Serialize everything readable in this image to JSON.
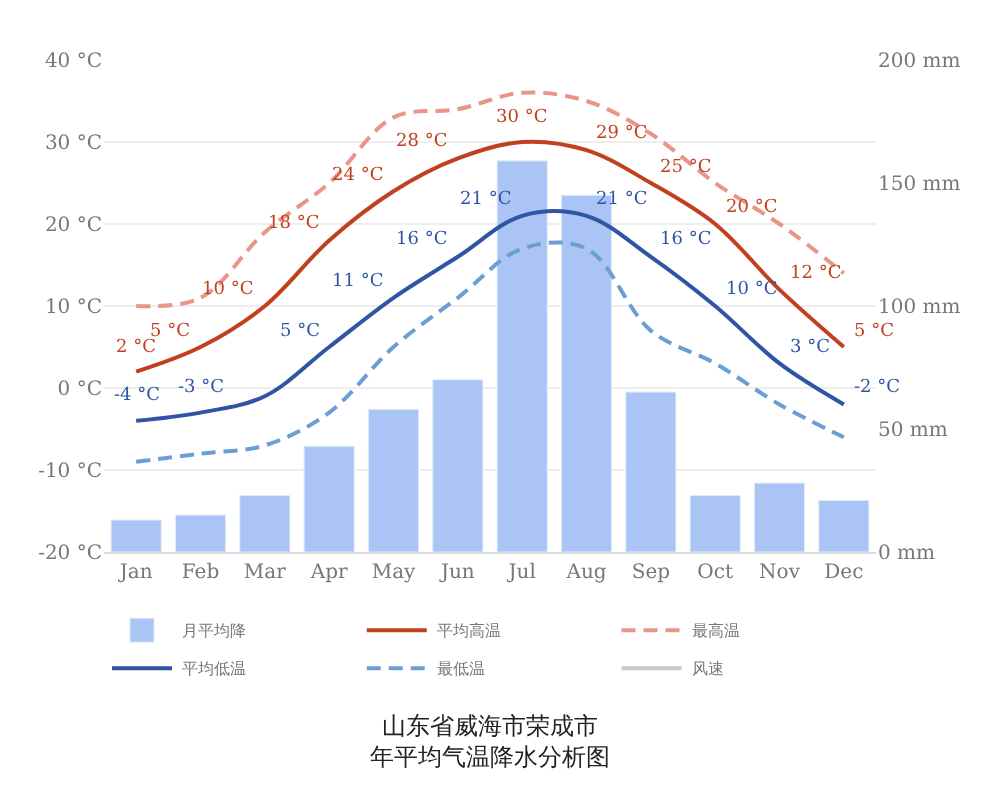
{
  "chart_data": {
    "type": "bar",
    "title": "山东省威海市荣成市年平均气温降水分析图",
    "categories": [
      "Jan",
      "Feb",
      "Mar",
      "Apr",
      "May",
      "Jun",
      "Jul",
      "Aug",
      "Sep",
      "Oct",
      "Nov",
      "Dec"
    ],
    "series": [
      {
        "name": "月平均降",
        "axis": "y2",
        "color": "#a9c4f5",
        "values": [
          13,
          15,
          23,
          43,
          58,
          70,
          159,
          145,
          65,
          23,
          28,
          21
        ]
      },
      {
        "name": "平均高温",
        "type": "line",
        "color": "#c0401f",
        "line_style": "solid",
        "values": [
          2,
          5,
          10,
          18,
          24,
          28,
          30,
          29,
          25,
          20,
          12,
          5
        ],
        "value_labels": [
          "2 °C",
          "5 °C",
          "10 °C",
          "18 °C",
          "24 °C",
          "28 °C",
          "30 °C",
          "29 °C",
          "25 °C",
          "20 °C",
          "12 °C",
          "5 °C"
        ]
      },
      {
        "name": "最高温",
        "type": "line",
        "color": "#e8968a",
        "line_style": "dashed",
        "values": [
          10,
          11,
          19,
          25,
          33,
          34,
          36,
          35,
          31,
          25,
          20,
          14
        ]
      },
      {
        "name": "平均低温",
        "type": "line",
        "color": "#2f55a4",
        "line_style": "solid",
        "values": [
          -4,
          -3,
          -1,
          5,
          11,
          16,
          21,
          21,
          16,
          10,
          3,
          -2
        ],
        "value_labels": [
          "-4 °C",
          "-3 °C",
          null,
          "5 °C",
          "11 °C",
          "16 °C",
          "21 °C",
          "21 °C",
          "16 °C",
          "10 °C",
          "3 °C",
          "-2 °C"
        ]
      },
      {
        "name": "最低温",
        "type": "line",
        "color": "#6b9fd4",
        "line_style": "dashed",
        "values": [
          -9,
          -8,
          -7,
          -3,
          5,
          11,
          17,
          17,
          7,
          3,
          -2,
          -6
        ]
      },
      {
        "name": "风速",
        "type": "line",
        "color": "#c8c8c8",
        "line_style": "solid",
        "values": [
          null,
          null,
          null,
          null,
          null,
          null,
          null,
          null,
          null,
          null,
          null,
          null
        ]
      }
    ],
    "ylim": [
      -20,
      40
    ],
    "yticks": [
      {
        "value": -20,
        "label": "-20 °C"
      },
      {
        "value": -10,
        "label": "-10 °C"
      },
      {
        "value": 0,
        "label": "0 °C"
      },
      {
        "value": 10,
        "label": "10 °C"
      },
      {
        "value": 20,
        "label": "20 °C"
      },
      {
        "value": 30,
        "label": "30 °C"
      },
      {
        "value": 40,
        "label": "40 °C"
      }
    ],
    "y2lim": [
      0,
      200
    ],
    "y2ticks": [
      {
        "value": 0,
        "label": "0 mm"
      },
      {
        "value": 50,
        "label": "50 mm"
      },
      {
        "value": 100,
        "label": "100 mm"
      },
      {
        "value": 150,
        "label": "150 mm"
      },
      {
        "value": 200,
        "label": "200 mm"
      }
    ],
    "grid": "y",
    "legend": "bottom"
  }
}
